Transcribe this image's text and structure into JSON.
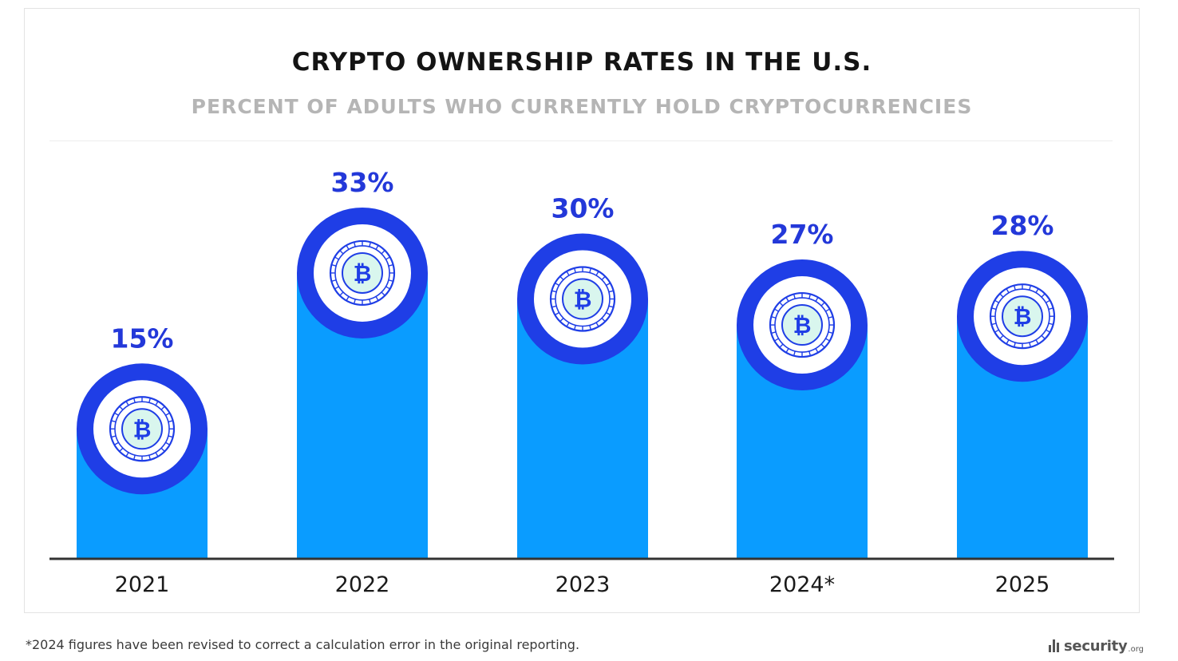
{
  "chart_data": {
    "type": "bar",
    "title": "CRYPTO OWNERSHIP RATES IN THE U.S.",
    "subtitle": "PERCENT OF ADULTS WHO CURRENTLY HOLD CRYPTOCURRENCIES",
    "categories": [
      "2021",
      "2022",
      "2023",
      "2024*",
      "2025"
    ],
    "values": [
      15,
      33,
      30,
      27,
      28
    ],
    "value_labels": [
      "15%",
      "33%",
      "30%",
      "27%",
      "28%"
    ],
    "unit": "%",
    "xlabel": "",
    "ylabel": "",
    "ylim": [
      0,
      40
    ],
    "grid": false,
    "legend": "none",
    "marker_icon": "bitcoin-coin-icon"
  },
  "colors": {
    "bar": "#0a9cff",
    "ring": "#1f3ee6",
    "label": "#2338d9",
    "coin_fill": "#d9f6ee",
    "coin_stroke": "#1f3ee6",
    "axis": "#333333"
  },
  "footnote": "*2024 figures have been revised to correct a calculation error in the original reporting.",
  "brand": {
    "name": "security",
    "tld": ".org"
  }
}
